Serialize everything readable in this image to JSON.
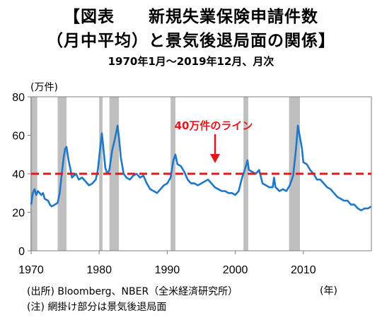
{
  "header": {
    "title_line1": "【図表　　新規失業保険申請件数",
    "title_line2": "（月中平均）と景気後退局面の関係】",
    "subtitle": "1970年1月～2019年12月、月次"
  },
  "footer": {
    "source": "(出所) Bloomberg、NBER（全米経済研究所）",
    "note": "(注) 網掛け部分は景気後退局面",
    "x_unit": "(年)"
  },
  "chart_data": {
    "type": "line",
    "title": "【図表　　新規失業保険申請件数（月中平均）と景気後退局面の関係】",
    "subtitle": "1970年1月～2019年12月、月次",
    "xlabel": "(年)",
    "ylabel": "(万件)",
    "xlim": [
      1970,
      2020
    ],
    "ylim": [
      0,
      80
    ],
    "x_ticks": [
      1970,
      1980,
      1990,
      2000,
      2010
    ],
    "y_ticks": [
      0,
      20,
      40,
      60,
      80
    ],
    "grid": false,
    "line_color": "#1f77c9",
    "recession_color": "#bfbfbf",
    "threshold_color": "#e0191c",
    "recessions": [
      [
        1969.9,
        1970.9
      ],
      [
        1973.9,
        1975.2
      ],
      [
        1980.0,
        1980.5
      ],
      [
        1981.5,
        1982.9
      ],
      [
        1990.5,
        1991.2
      ],
      [
        2001.2,
        2001.9
      ],
      [
        2007.9,
        2009.5
      ]
    ],
    "threshold": {
      "value": 40,
      "label": "40万件のライン"
    },
    "series": [
      {
        "values": [
          [
            1970.0,
            24
          ],
          [
            1970.25,
            30
          ],
          [
            1970.5,
            32
          ],
          [
            1970.75,
            29
          ],
          [
            1971.0,
            31
          ],
          [
            1971.5,
            29
          ],
          [
            1971.75,
            30
          ],
          [
            1972.0,
            27
          ],
          [
            1972.5,
            26
          ],
          [
            1972.75,
            24
          ],
          [
            1973.0,
            23
          ],
          [
            1973.5,
            24
          ],
          [
            1973.9,
            25
          ],
          [
            1974.2,
            30
          ],
          [
            1974.5,
            40
          ],
          [
            1974.8,
            49
          ],
          [
            1975.0,
            53
          ],
          [
            1975.2,
            54
          ],
          [
            1975.5,
            47
          ],
          [
            1975.8,
            42
          ],
          [
            1976.0,
            38
          ],
          [
            1976.3,
            39
          ],
          [
            1976.6,
            40
          ],
          [
            1977.0,
            37
          ],
          [
            1977.5,
            38
          ],
          [
            1978.0,
            36
          ],
          [
            1978.5,
            34
          ],
          [
            1979.0,
            35
          ],
          [
            1979.5,
            37
          ],
          [
            1979.8,
            42
          ],
          [
            1980.1,
            52
          ],
          [
            1980.4,
            61
          ],
          [
            1980.6,
            54
          ],
          [
            1980.9,
            43
          ],
          [
            1981.2,
            40
          ],
          [
            1981.5,
            42
          ],
          [
            1981.9,
            52
          ],
          [
            1982.3,
            58
          ],
          [
            1982.7,
            65
          ],
          [
            1982.9,
            59
          ],
          [
            1983.2,
            48
          ],
          [
            1983.6,
            40
          ],
          [
            1984.0,
            38
          ],
          [
            1984.5,
            37
          ],
          [
            1985.0,
            39
          ],
          [
            1985.5,
            40
          ],
          [
            1986.0,
            38
          ],
          [
            1986.5,
            39
          ],
          [
            1987.0,
            35
          ],
          [
            1987.5,
            32
          ],
          [
            1988.0,
            31
          ],
          [
            1988.5,
            30
          ],
          [
            1989.0,
            32
          ],
          [
            1989.5,
            34
          ],
          [
            1990.0,
            35
          ],
          [
            1990.5,
            38
          ],
          [
            1990.9,
            47
          ],
          [
            1991.2,
            50
          ],
          [
            1991.5,
            45
          ],
          [
            1992.0,
            44
          ],
          [
            1992.5,
            41
          ],
          [
            1993.0,
            37
          ],
          [
            1993.5,
            35
          ],
          [
            1994.0,
            35
          ],
          [
            1994.5,
            34
          ],
          [
            1995.0,
            35
          ],
          [
            1995.5,
            36
          ],
          [
            1996.0,
            37
          ],
          [
            1996.5,
            35
          ],
          [
            1997.0,
            33
          ],
          [
            1997.5,
            32
          ],
          [
            1998.0,
            31
          ],
          [
            1998.5,
            31
          ],
          [
            1999.0,
            30
          ],
          [
            1999.5,
            30
          ],
          [
            2000.0,
            29
          ],
          [
            2000.5,
            31
          ],
          [
            2001.0,
            38
          ],
          [
            2001.3,
            41
          ],
          [
            2001.8,
            47
          ],
          [
            2002.0,
            42
          ],
          [
            2002.5,
            41
          ],
          [
            2003.0,
            40
          ],
          [
            2003.5,
            42
          ],
          [
            2004.0,
            35
          ],
          [
            2004.5,
            34
          ],
          [
            2005.0,
            33
          ],
          [
            2005.5,
            33
          ],
          [
            2005.7,
            38
          ],
          [
            2005.9,
            33
          ],
          [
            2006.5,
            31
          ],
          [
            2007.0,
            32
          ],
          [
            2007.5,
            31
          ],
          [
            2008.0,
            34
          ],
          [
            2008.5,
            39
          ],
          [
            2008.9,
            52
          ],
          [
            2009.2,
            65
          ],
          [
            2009.5,
            59
          ],
          [
            2009.8,
            53
          ],
          [
            2010.0,
            46
          ],
          [
            2010.5,
            45
          ],
          [
            2011.0,
            42
          ],
          [
            2011.5,
            40
          ],
          [
            2012.0,
            37
          ],
          [
            2012.5,
            37
          ],
          [
            2013.0,
            35
          ],
          [
            2013.5,
            33
          ],
          [
            2014.0,
            32
          ],
          [
            2014.5,
            30
          ],
          [
            2015.0,
            28
          ],
          [
            2015.5,
            27
          ],
          [
            2016.0,
            26
          ],
          [
            2016.5,
            26
          ],
          [
            2017.0,
            24
          ],
          [
            2017.5,
            24
          ],
          [
            2018.0,
            22
          ],
          [
            2018.5,
            21
          ],
          [
            2019.0,
            22
          ],
          [
            2019.5,
            22
          ],
          [
            2019.95,
            23
          ]
        ]
      }
    ]
  }
}
